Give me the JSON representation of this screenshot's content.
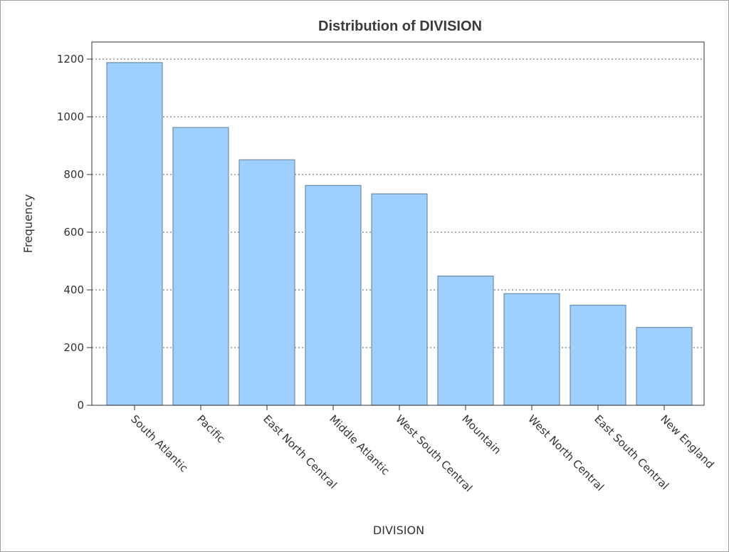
{
  "chart_data": {
    "type": "bar",
    "title": "Distribution of DIVISION",
    "xlabel": "DIVISION",
    "ylabel": "Frequency",
    "categories": [
      "South Atlantic",
      "Pacific",
      "East North Central",
      "Middle Atlantic",
      "West South Central",
      "Mountain",
      "West North Central",
      "East South Central",
      "New England"
    ],
    "values": [
      1188,
      963,
      851,
      762,
      733,
      448,
      387,
      347,
      270
    ],
    "ylim": [
      0,
      1250
    ],
    "yticks": [
      0,
      200,
      400,
      600,
      800,
      1000,
      1200
    ],
    "grid": "horizontal-dotted",
    "colors": {
      "bar_fill": "#9dcfff",
      "bar_stroke": "#6f8fa8",
      "grid": "#7a7a7a",
      "axis": "#333333"
    }
  }
}
